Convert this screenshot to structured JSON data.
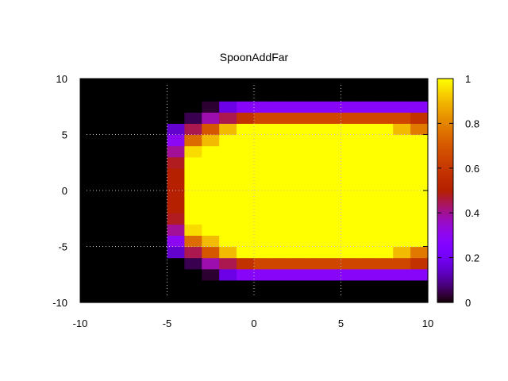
{
  "chart_data": {
    "type": "heatmap",
    "title": "SpoonAddFar",
    "xlabel": "",
    "ylabel": "",
    "xlim": [
      -10,
      10
    ],
    "ylim": [
      -10,
      10
    ],
    "x_ticks": [
      "-10",
      "-5",
      "0",
      "5",
      "10"
    ],
    "y_ticks": [
      "10",
      "5",
      "0",
      "-5",
      "-10"
    ],
    "colorbar_ticks": [
      "1",
      "0.8",
      "0.6",
      "0.4",
      "0.2",
      "0"
    ],
    "colorbar_range": [
      0,
      1
    ],
    "colormap": "gnuplot (black-purple-red-orange-yellow)",
    "grid": true,
    "cell_size": 1,
    "grid_x_start": -10,
    "grid_y_start": -10,
    "values": [
      [
        0,
        0,
        0,
        0,
        0,
        0,
        0,
        0,
        0,
        0,
        0,
        0,
        0,
        0,
        0,
        0,
        0,
        0,
        0,
        0
      ],
      [
        0,
        0,
        0,
        0,
        0,
        0,
        0,
        0,
        0,
        0,
        0,
        0,
        0,
        0,
        0,
        0,
        0,
        0,
        0,
        0
      ],
      [
        0,
        0,
        0,
        0,
        0,
        0,
        0,
        0.03,
        0.18,
        0.28,
        0.28,
        0.28,
        0.28,
        0.28,
        0.28,
        0.28,
        0.28,
        0.28,
        0.28,
        0.28
      ],
      [
        0,
        0,
        0,
        0,
        0,
        0,
        0.05,
        0.38,
        0.45,
        0.58,
        0.65,
        0.65,
        0.65,
        0.65,
        0.65,
        0.65,
        0.65,
        0.65,
        0.65,
        0.58
      ],
      [
        0,
        0,
        0,
        0,
        0,
        0.15,
        0.45,
        0.7,
        0.9,
        1,
        1,
        1,
        1,
        1,
        1,
        1,
        1,
        1,
        0.9,
        0.78
      ],
      [
        0,
        0,
        0,
        0,
        0,
        0.3,
        0.75,
        0.9,
        1,
        1,
        1,
        1,
        1,
        1,
        1,
        1,
        1,
        1,
        1,
        1
      ],
      [
        0,
        0,
        0,
        0,
        0,
        0.4,
        0.95,
        1,
        1,
        1,
        1,
        1,
        1,
        1,
        1,
        1,
        1,
        1,
        1,
        1
      ],
      [
        0,
        0,
        0,
        0,
        0,
        0.48,
        1,
        1,
        1,
        1,
        1,
        1,
        1,
        1,
        1,
        1,
        1,
        1,
        1,
        1
      ],
      [
        0,
        0,
        0,
        0,
        0,
        0.5,
        1,
        1,
        1,
        1,
        1,
        1,
        1,
        1,
        1,
        1,
        1,
        1,
        1,
        1
      ],
      [
        0,
        0,
        0,
        0,
        0,
        0.5,
        1,
        1,
        1,
        1,
        1,
        1,
        1,
        1,
        1,
        1,
        1,
        1,
        1,
        1
      ],
      [
        0,
        0,
        0,
        0,
        0,
        0.5,
        1,
        1,
        1,
        1,
        1,
        1,
        1,
        1,
        1,
        1,
        1,
        1,
        1,
        1
      ],
      [
        0,
        0,
        0,
        0,
        0,
        0.5,
        1,
        1,
        1,
        1,
        1,
        1,
        1,
        1,
        1,
        1,
        1,
        1,
        1,
        1
      ],
      [
        0,
        0,
        0,
        0,
        0,
        0.48,
        1,
        1,
        1,
        1,
        1,
        1,
        1,
        1,
        1,
        1,
        1,
        1,
        1,
        1
      ],
      [
        0,
        0,
        0,
        0,
        0,
        0.4,
        0.95,
        1,
        1,
        1,
        1,
        1,
        1,
        1,
        1,
        1,
        1,
        1,
        1,
        1
      ],
      [
        0,
        0,
        0,
        0,
        0,
        0.3,
        0.75,
        0.9,
        1,
        1,
        1,
        1,
        1,
        1,
        1,
        1,
        1,
        1,
        1,
        1
      ],
      [
        0,
        0,
        0,
        0,
        0,
        0.15,
        0.45,
        0.7,
        0.9,
        1,
        1,
        1,
        1,
        1,
        1,
        1,
        1,
        1,
        0.9,
        0.78
      ],
      [
        0,
        0,
        0,
        0,
        0,
        0,
        0.05,
        0.38,
        0.45,
        0.58,
        0.65,
        0.65,
        0.65,
        0.65,
        0.65,
        0.65,
        0.65,
        0.65,
        0.65,
        0.58
      ],
      [
        0,
        0,
        0,
        0,
        0,
        0,
        0,
        0.03,
        0.18,
        0.28,
        0.28,
        0.28,
        0.28,
        0.28,
        0.28,
        0.28,
        0.28,
        0.28,
        0.28,
        0.28
      ],
      [
        0,
        0,
        0,
        0,
        0,
        0,
        0,
        0,
        0,
        0,
        0,
        0,
        0,
        0,
        0,
        0,
        0,
        0,
        0,
        0
      ],
      [
        0,
        0,
        0,
        0,
        0,
        0,
        0,
        0,
        0,
        0,
        0,
        0,
        0,
        0,
        0,
        0,
        0,
        0,
        0,
        0
      ]
    ]
  }
}
